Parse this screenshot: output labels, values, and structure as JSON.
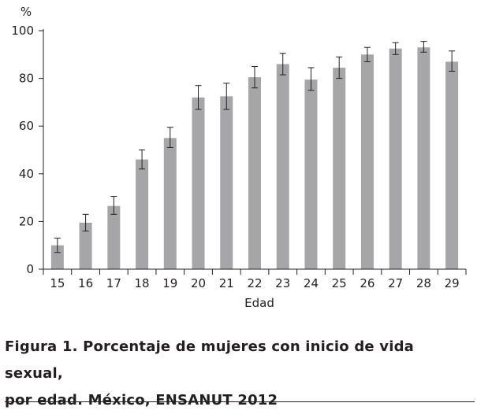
{
  "chart_data": {
    "type": "bar",
    "ylabel": "%",
    "xlabel": "Edad",
    "ylim": [
      0,
      100
    ],
    "yticks": [
      0,
      20,
      40,
      60,
      80,
      100
    ],
    "categories": [
      "15",
      "16",
      "17",
      "18",
      "19",
      "20",
      "21",
      "22",
      "23",
      "24",
      "25",
      "26",
      "27",
      "28",
      "29"
    ],
    "values": [
      10,
      19.5,
      26.5,
      46,
      55,
      72,
      72.5,
      80.5,
      86,
      79.5,
      84.5,
      90,
      92.5,
      93,
      87
    ],
    "error_low": [
      7,
      16,
      23,
      42,
      51,
      67,
      67,
      76,
      81.5,
      75,
      80,
      87,
      90,
      91,
      83
    ],
    "error_high": [
      13,
      23,
      30.5,
      50,
      59.5,
      77,
      78,
      85,
      90.5,
      84.5,
      89,
      93,
      95,
      95.5,
      91.5
    ],
    "bar_color": "#a6a6a8",
    "error_color": "#231f20",
    "grid": false
  },
  "caption": {
    "line1": "Figura 1. Porcentaje de mujeres con inicio de vida sexual,",
    "line2": "por edad. México, ENSANUT 2012"
  }
}
